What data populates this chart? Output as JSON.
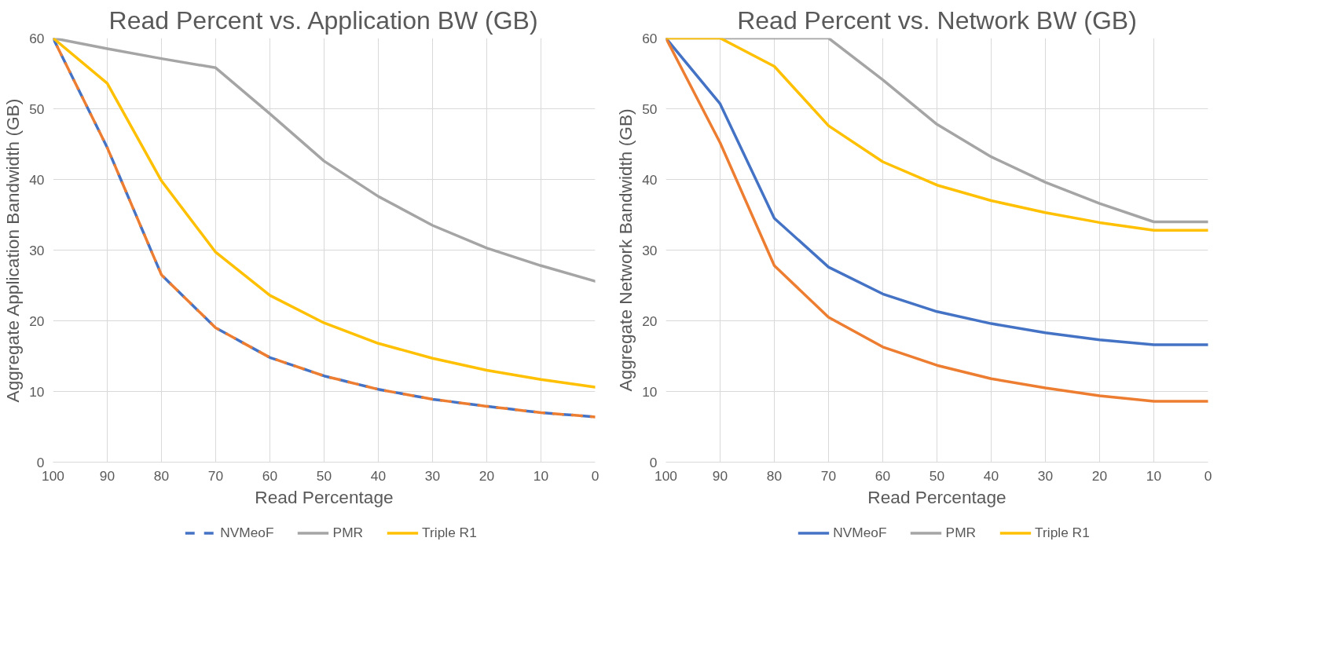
{
  "chart_data": [
    {
      "type": "line",
      "title": "Read Percent vs. Application BW (GB)",
      "xlabel": "Read Percentage",
      "ylabel": "Aggregate Application Bandwidth (GB)",
      "x": [
        100,
        90,
        80,
        70,
        60,
        50,
        40,
        30,
        20,
        10,
        0
      ],
      "xlim": [
        100,
        0
      ],
      "xticks": [
        100,
        90,
        80,
        70,
        60,
        50,
        40,
        30,
        20,
        10,
        0
      ],
      "ylim": [
        0,
        60
      ],
      "yticks": [
        0,
        10,
        20,
        30,
        40,
        50,
        60
      ],
      "grid": true,
      "legend": "bottom",
      "marker": "none",
      "series": [
        {
          "name": "NVMeoF",
          "color": "#4472c4",
          "line_style": "dashed",
          "values": [
            60,
            44.5,
            26.5,
            19,
            14.8,
            12.2,
            10.3,
            8.9,
            7.9,
            7,
            6.4
          ]
        },
        {
          "color": "#ed7d31",
          "line_style": "dashed",
          "values": [
            60,
            44.5,
            26.5,
            19,
            14.8,
            12.2,
            10.3,
            8.9,
            7.9,
            7,
            6.4
          ]
        },
        {
          "name": "PMR",
          "color": "#a5a5a5",
          "line_style": "solid",
          "values": [
            60,
            58.5,
            57.1,
            55.8,
            49.3,
            42.6,
            37.6,
            33.5,
            30.3,
            27.8,
            25.6
          ]
        },
        {
          "name": "Triple R1",
          "color": "#ffc000",
          "line_style": "solid",
          "values": [
            60,
            53.6,
            39.8,
            29.7,
            23.6,
            19.7,
            16.8,
            14.7,
            13.0,
            11.7,
            10.6
          ]
        }
      ]
    },
    {
      "type": "line",
      "title": "Read Percent vs. Network BW (GB)",
      "xlabel": "Read Percentage",
      "ylabel": "Aggregate Network Bandwidth (GB)",
      "x": [
        100,
        90,
        80,
        70,
        60,
        50,
        40,
        30,
        20,
        10,
        0
      ],
      "xlim": [
        100,
        0
      ],
      "xticks": [
        100,
        90,
        80,
        70,
        60,
        50,
        40,
        30,
        20,
        10,
        0
      ],
      "ylim": [
        0,
        60
      ],
      "yticks": [
        0,
        10,
        20,
        30,
        40,
        50,
        60
      ],
      "grid": true,
      "legend": "bottom",
      "marker": "none",
      "series": [
        {
          "name": "NVMeoF",
          "color": "#4472c4",
          "line_style": "solid",
          "values": [
            60,
            50.7,
            34.5,
            27.6,
            23.8,
            21.3,
            19.6,
            18.3,
            17.3,
            16.6,
            16.6
          ]
        },
        {
          "color": "#ed7d31",
          "line_style": "solid",
          "values": [
            60,
            45.2,
            27.8,
            20.5,
            16.3,
            13.7,
            11.8,
            10.5,
            9.4,
            8.6,
            8.6
          ]
        },
        {
          "name": "PMR",
          "color": "#a5a5a5",
          "line_style": "solid",
          "values": [
            60,
            60,
            60,
            60,
            54.1,
            47.8,
            43.2,
            39.6,
            36.6,
            34,
            34
          ]
        },
        {
          "name": "Triple R1",
          "color": "#ffc000",
          "line_style": "solid",
          "values": [
            60,
            60,
            56,
            47.6,
            42.5,
            39.2,
            37,
            35.3,
            33.9,
            32.8,
            32.8
          ]
        }
      ]
    }
  ]
}
